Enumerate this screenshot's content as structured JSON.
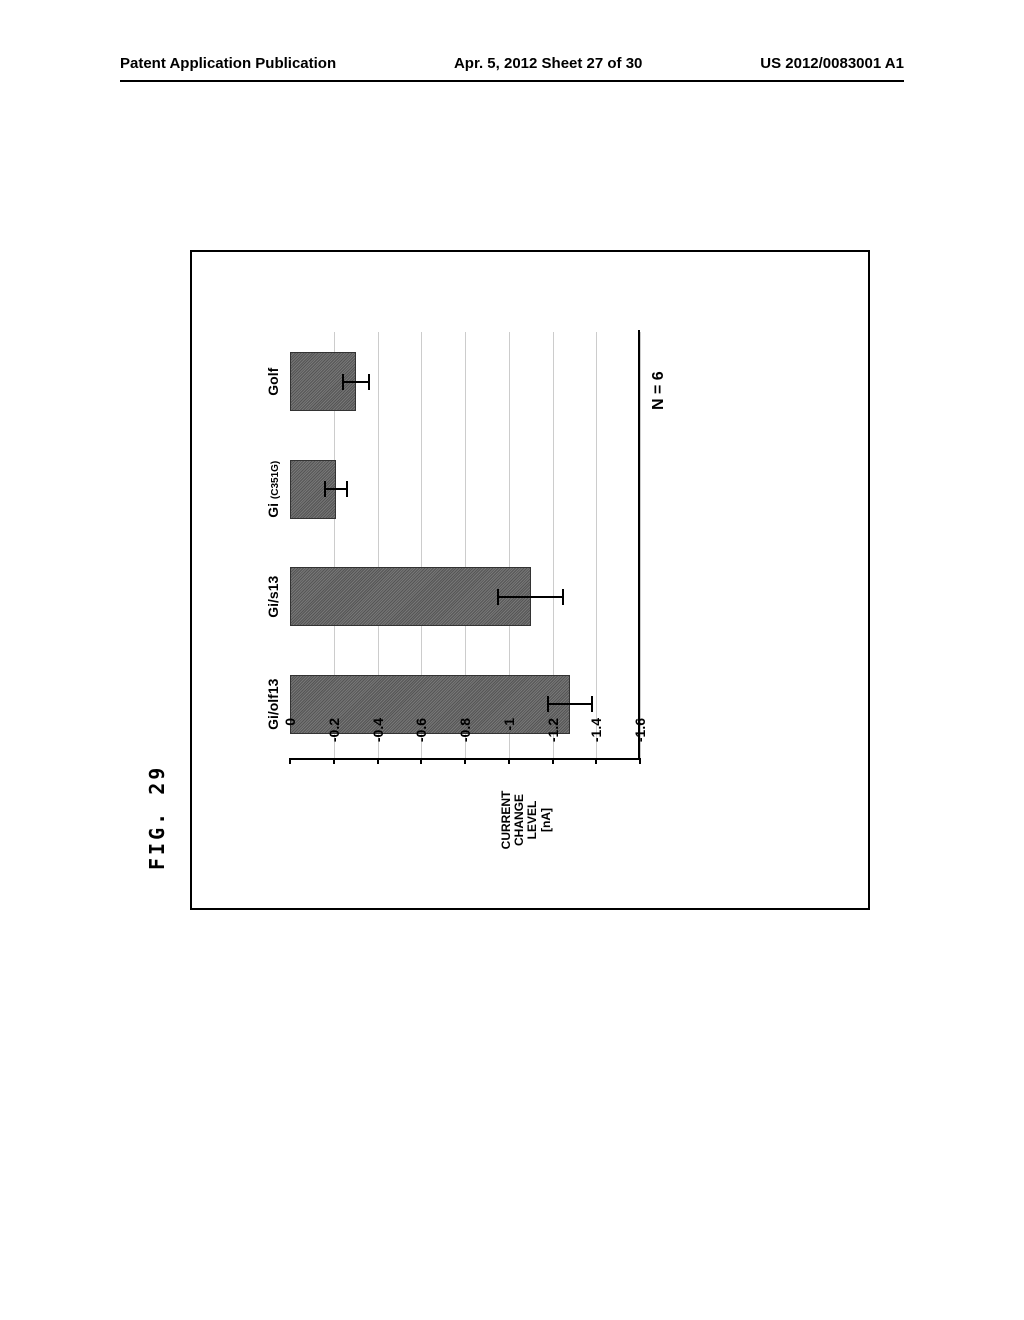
{
  "header": {
    "left": "Patent Application Publication",
    "center": "Apr. 5, 2012  Sheet 27 of 30",
    "right": "US 2012/0083001 A1"
  },
  "figure_label": "FIG. 29",
  "chart": {
    "type": "bar",
    "ylabel": "CURRENT\nCHANGE\nLEVEL\n[nA]",
    "ylim": [
      -1.6,
      0
    ],
    "yticks": [
      0,
      -0.2,
      -0.4,
      -0.6,
      -0.8,
      -1,
      -1.2,
      -1.4,
      -1.6
    ],
    "categories": [
      "Gi/olf13",
      "Gi/s13",
      "Gi (C351G)",
      "Golf"
    ],
    "values": [
      -1.28,
      -1.1,
      -0.21,
      -0.3
    ],
    "errors": [
      0.1,
      0.15,
      0.05,
      0.06
    ],
    "bar_color": "#666666",
    "n_label": "N = 6",
    "background_color": "#ffffff"
  }
}
